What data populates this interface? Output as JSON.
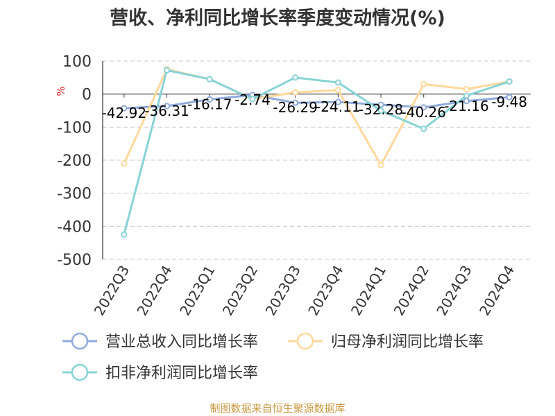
{
  "source": "制图数据来自恒生聚源数据库",
  "colors": {
    "revenue": "#8faadc",
    "net_profit": "#ffd89b",
    "deducted_net_profit": "#88d3d6",
    "axis": "#333333",
    "grid": "#c8c8c8",
    "unit": "#e0242f"
  },
  "chart_data": {
    "type": "line",
    "title": "营收、净利同比增长率季度变动情况(%)",
    "ylabel": "%",
    "ylim": [
      -500,
      100
    ],
    "yticks": [
      100,
      0,
      -100,
      -200,
      -300,
      -400,
      -500
    ],
    "grid": true,
    "legend_position": "bottom",
    "categories": [
      "2022Q3",
      "2022Q4",
      "2023Q1",
      "2023Q2",
      "2023Q3",
      "2023Q4",
      "2024Q1",
      "2024Q2",
      "2024Q3",
      "2024Q4"
    ],
    "series": [
      {
        "name": "营业总收入同比增长率",
        "values": [
          -42.92,
          -36.31,
          -16.17,
          -2.74,
          -26.29,
          -24.11,
          -32.28,
          -40.26,
          -21.16,
          -9.48
        ],
        "labels": [
          "-42.92",
          "-36.31",
          "-16.17",
          "-2.74",
          "-26.29",
          "-24.11",
          "-32.28",
          "-40.26",
          "-21.16",
          "-9.48"
        ]
      },
      {
        "name": "归母净利润同比增长率",
        "values": [
          -210,
          75,
          45,
          -15,
          5,
          12,
          -215,
          30,
          15,
          38
        ]
      },
      {
        "name": "扣非净利润同比增长率",
        "values": [
          -425,
          72,
          45,
          -15,
          50,
          35,
          -50,
          -105,
          -5,
          38
        ]
      }
    ]
  }
}
